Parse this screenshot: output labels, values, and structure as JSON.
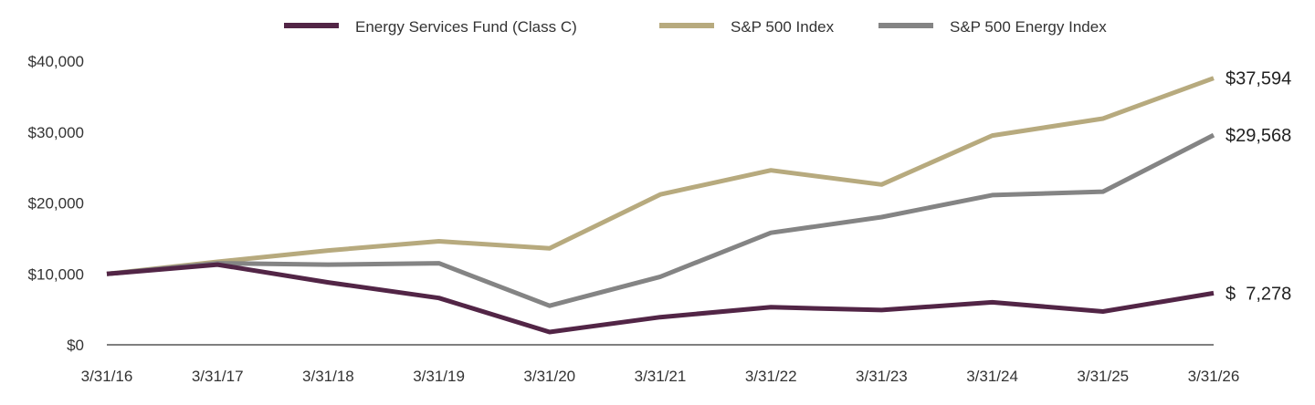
{
  "chart_data": {
    "type": "line",
    "x": [
      "3/31/16",
      "3/31/17",
      "3/31/18",
      "3/31/19",
      "3/31/20",
      "3/31/21",
      "3/31/22",
      "3/31/23",
      "3/31/24",
      "3/31/25",
      "3/31/26"
    ],
    "series": [
      {
        "name": "Energy Services Fund (Class C)",
        "color": "#522546",
        "values": [
          10000,
          11300,
          8800,
          6600,
          1800,
          3900,
          5300,
          4900,
          6000,
          4700,
          7278
        ],
        "end_label": "$  7,278"
      },
      {
        "name": "S&P 500 Index",
        "color": "#b7aa7e",
        "values": [
          10000,
          11700,
          13300,
          14600,
          13600,
          21200,
          24600,
          22600,
          29500,
          31900,
          37594
        ],
        "end_label": "$37,594"
      },
      {
        "name": "S&P 500 Energy Index",
        "color": "#848484",
        "values": [
          10000,
          11500,
          11300,
          11500,
          5500,
          9600,
          15800,
          18000,
          21100,
          21600,
          29568
        ],
        "end_label": "$29,568"
      }
    ],
    "yticks": [
      0,
      10000,
      20000,
      30000,
      40000
    ],
    "ytick_labels": [
      "$0",
      "$10,000",
      "$20,000",
      "$30,000",
      "$40,000"
    ],
    "ylim": [
      0,
      40000
    ],
    "grid": false,
    "legend_position": "top",
    "title": "",
    "xlabel": "",
    "ylabel": ""
  }
}
